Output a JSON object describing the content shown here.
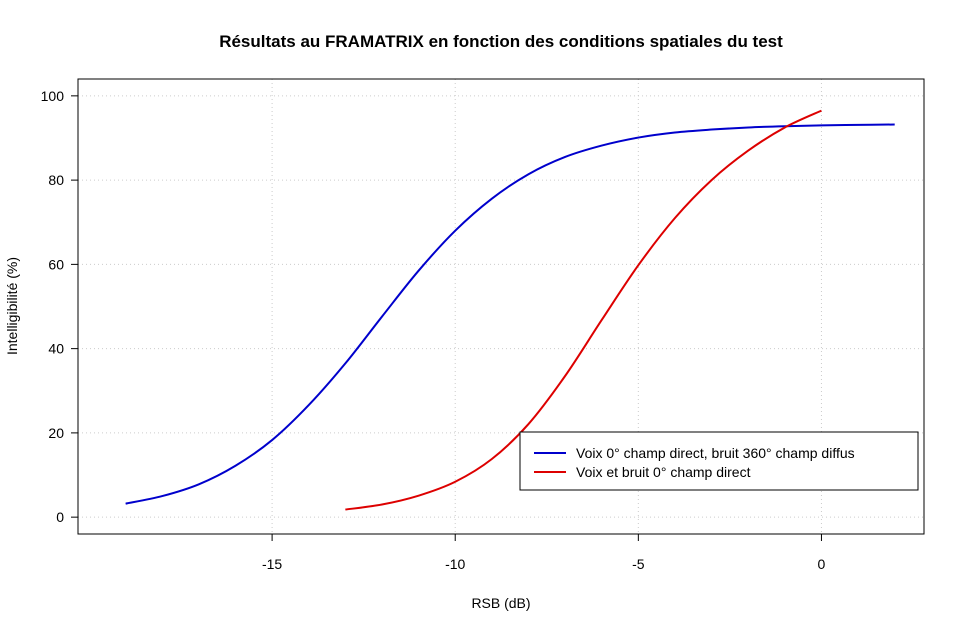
{
  "chart_data": {
    "type": "line",
    "title": "Résultats au FRAMATRIX en fonction des conditions spatiales du test",
    "xlabel": "RSB (dB)",
    "ylabel": "Intelligibilité (%)",
    "xlim": [
      -20.3,
      2.8
    ],
    "ylim": [
      -4,
      104
    ],
    "xticks": [
      -15,
      -10,
      -5,
      0
    ],
    "xtick_labels": [
      "-15",
      "-10",
      "-5",
      "0"
    ],
    "yticks": [
      0,
      20,
      40,
      60,
      80,
      100
    ],
    "ytick_labels": [
      "0",
      "20",
      "40",
      "60",
      "80",
      "100"
    ],
    "grid": true,
    "legend_position": "bottom-right",
    "series": [
      {
        "name": "Voix 0° champ direct, bruit 360° champ diffus",
        "color": "#0000cc",
        "x": [
          -19,
          -18,
          -17,
          -16,
          -15,
          -14,
          -13,
          -12,
          -11,
          -10,
          -9,
          -8,
          -7,
          -6,
          -5,
          -4,
          -3,
          -2,
          -1,
          0,
          1,
          2
        ],
        "y": [
          3.2,
          5.0,
          7.8,
          12.2,
          18.3,
          26.6,
          36.5,
          47.6,
          58.5,
          68.0,
          75.6,
          81.4,
          85.5,
          88.2,
          90.1,
          91.3,
          92.0,
          92.5,
          92.8,
          93.0,
          93.1,
          93.2
        ]
      },
      {
        "name": "Voix et bruit 0° champ direct",
        "color": "#dd0000",
        "x": [
          -13,
          -12,
          -11,
          -10,
          -9,
          -8,
          -7,
          -6,
          -5,
          -4,
          -3,
          -2,
          -1,
          0
        ],
        "y": [
          1.8,
          3.0,
          5.1,
          8.4,
          13.8,
          22.1,
          33.5,
          46.8,
          59.8,
          71.0,
          80.0,
          87.0,
          92.5,
          96.5
        ]
      }
    ]
  }
}
